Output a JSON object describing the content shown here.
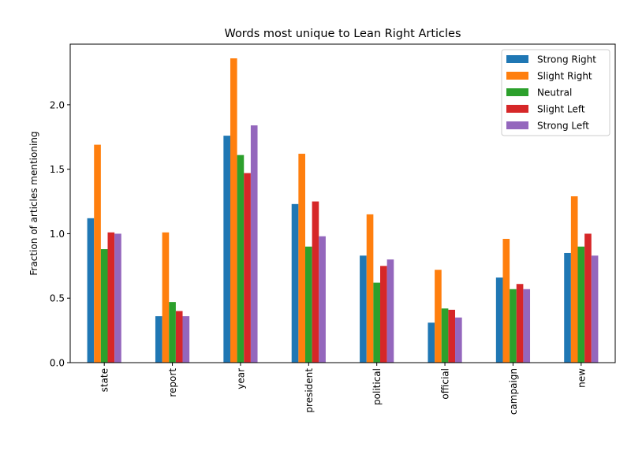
{
  "chart_data": {
    "type": "bar",
    "title": "Words most unique to Lean Right Articles",
    "xlabel": "",
    "ylabel": "Fraction of articles mentioning",
    "categories": [
      "state",
      "report",
      "year",
      "president",
      "political",
      "official",
      "campaign",
      "new"
    ],
    "ylim": [
      0,
      2.47
    ],
    "yticks": [
      0.0,
      0.5,
      1.0,
      1.5,
      2.0
    ],
    "ytick_labels": [
      "0.0",
      "0.5",
      "1.0",
      "1.5",
      "2.0"
    ],
    "legend_position": "top-right",
    "grid": false,
    "series": [
      {
        "name": "Strong Right",
        "color": "#1f77b4",
        "values": [
          1.12,
          0.36,
          1.76,
          1.23,
          0.83,
          0.31,
          0.66,
          0.85
        ]
      },
      {
        "name": "Slight Right",
        "color": "#ff7f0e",
        "values": [
          1.69,
          1.01,
          2.36,
          1.62,
          1.15,
          0.72,
          0.96,
          1.29
        ]
      },
      {
        "name": "Neutral",
        "color": "#2ca02c",
        "values": [
          0.88,
          0.47,
          1.61,
          0.9,
          0.62,
          0.42,
          0.57,
          0.9
        ]
      },
      {
        "name": "Slight Left",
        "color": "#d62728",
        "values": [
          1.01,
          0.4,
          1.47,
          1.25,
          0.75,
          0.41,
          0.61,
          1.0
        ]
      },
      {
        "name": "Strong Left",
        "color": "#9467bd",
        "values": [
          1.0,
          0.36,
          1.84,
          0.98,
          0.8,
          0.35,
          0.57,
          0.83
        ]
      }
    ]
  }
}
